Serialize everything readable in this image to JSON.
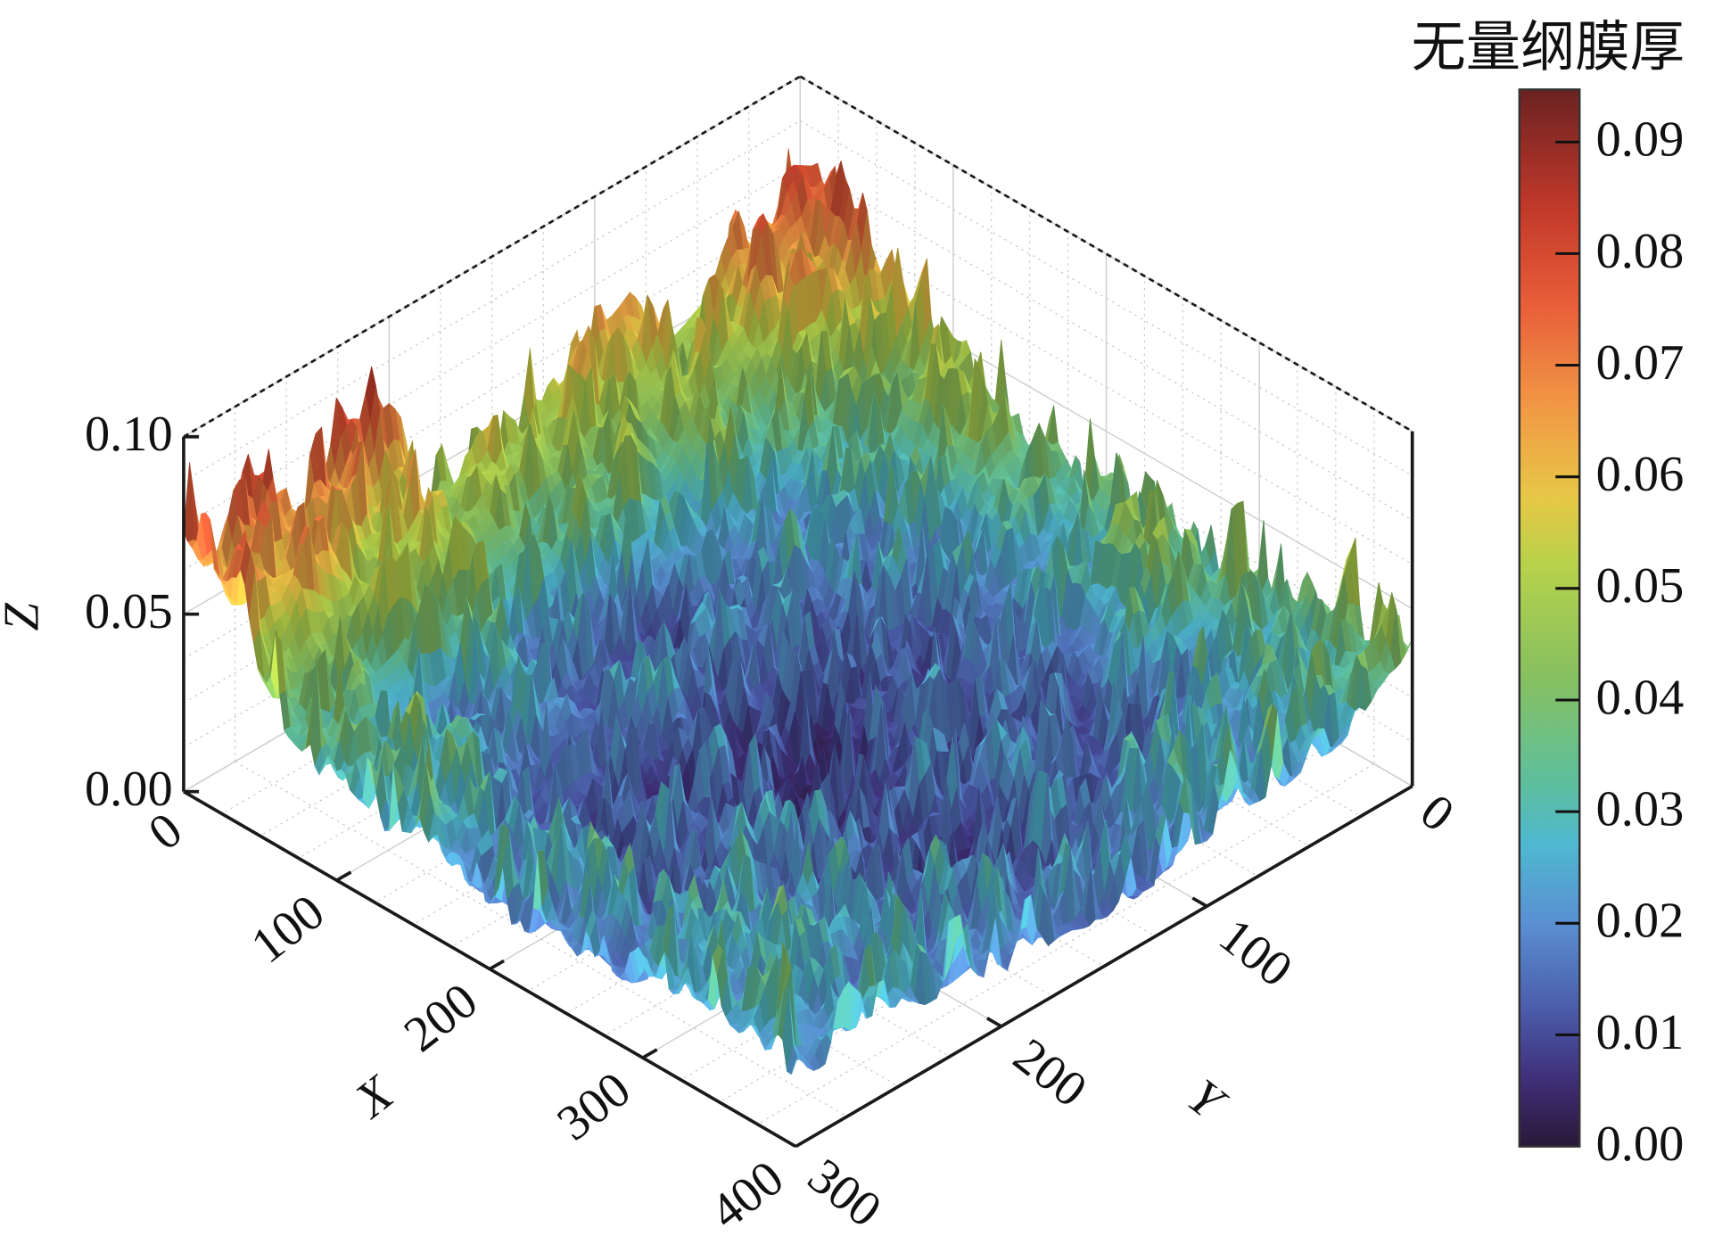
{
  "chart_data": {
    "type": "surface",
    "xlabel": "X",
    "ylabel": "Y",
    "zlabel": "Z",
    "xlim": [
      0,
      400
    ],
    "ylim": [
      0,
      300
    ],
    "zlim": [
      0,
      0.1
    ],
    "xticks": [
      0,
      100,
      200,
      300,
      400
    ],
    "xtick_labels": [
      "0",
      "100",
      "200",
      "300",
      "400"
    ],
    "yticks": [
      0,
      100,
      200,
      300
    ],
    "ytick_labels": [
      "0",
      "100",
      "200",
      "300"
    ],
    "zticks": [
      0,
      0.05,
      0.1
    ],
    "ztick_labels": [
      "0.00",
      "0.05",
      "0.10"
    ],
    "grid": true,
    "colorbar": {
      "label": "无量纲膜厚",
      "range": [
        0,
        0.0947
      ],
      "ticks": [
        0,
        0.01,
        0.02,
        0.03,
        0.04,
        0.05,
        0.06,
        0.07,
        0.08,
        0.09
      ],
      "tick_labels": [
        "0.00",
        "0.01",
        "0.02",
        "0.03",
        "0.04",
        "0.05",
        "0.06",
        "0.07",
        "0.08",
        "0.09"
      ],
      "placement": "right"
    },
    "colormap": [
      {
        "value": 0.0,
        "color": "#2a1838"
      },
      {
        "value": 0.006,
        "color": "#3f2f78"
      },
      {
        "value": 0.012,
        "color": "#4b5aa8"
      },
      {
        "value": 0.02,
        "color": "#5a8fd2"
      },
      {
        "value": 0.027,
        "color": "#4fb8d0"
      },
      {
        "value": 0.033,
        "color": "#5fbf9a"
      },
      {
        "value": 0.042,
        "color": "#86c060"
      },
      {
        "value": 0.052,
        "color": "#b6d24a"
      },
      {
        "value": 0.058,
        "color": "#e6c846"
      },
      {
        "value": 0.066,
        "color": "#f19a45"
      },
      {
        "value": 0.075,
        "color": "#e9603a"
      },
      {
        "value": 0.084,
        "color": "#c3392a"
      },
      {
        "value": 0.0947,
        "color": "#6a2222"
      }
    ],
    "surface_grid": {
      "x": [
        0,
        100,
        200,
        300,
        400
      ],
      "y": [
        0,
        75,
        150,
        225,
        300
      ],
      "z": [
        [
          0.08,
          0.058,
          0.05,
          0.072,
          0.078
        ],
        [
          0.048,
          0.018,
          0.01,
          0.018,
          0.03
        ],
        [
          0.038,
          0.008,
          0.004,
          0.008,
          0.022
        ],
        [
          0.036,
          0.01,
          0.006,
          0.012,
          0.024
        ],
        [
          0.038,
          0.022,
          0.016,
          0.02,
          0.026
        ]
      ]
    }
  }
}
